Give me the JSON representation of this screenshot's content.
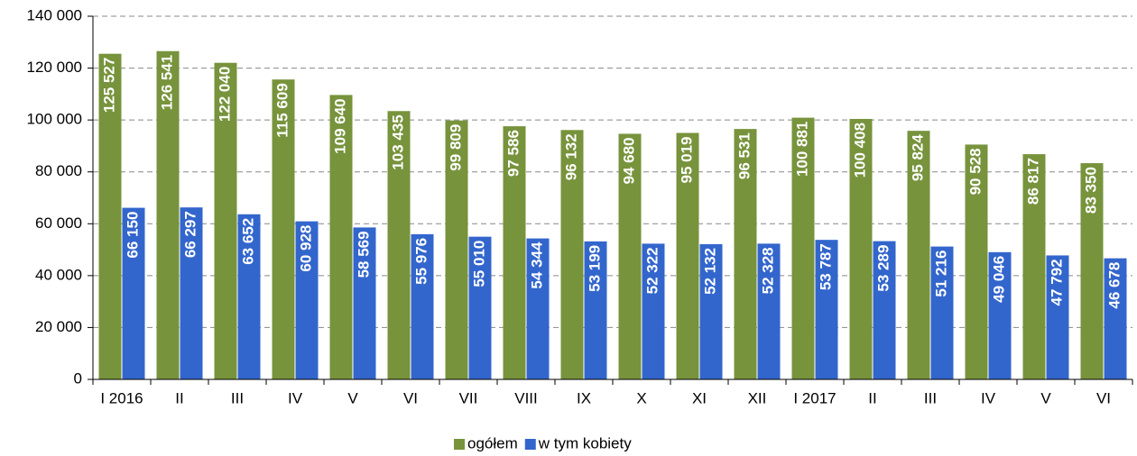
{
  "chart_data": {
    "type": "bar",
    "categories": [
      "I 2016",
      "II",
      "III",
      "IV",
      "V",
      "VI",
      "VII",
      "VIII",
      "IX",
      "X",
      "XI",
      "XII",
      "I 2017",
      "II",
      "III",
      "IV",
      "V",
      "VI"
    ],
    "series": [
      {
        "name": "ogółem",
        "color": "#77933c",
        "values": [
          125527,
          126541,
          122040,
          115609,
          109640,
          103435,
          99809,
          97586,
          96132,
          94680,
          95019,
          96531,
          100881,
          100408,
          95824,
          90528,
          86817,
          83350
        ],
        "value_labels": [
          "125 527",
          "126 541",
          "122 040",
          "115 609",
          "109 640",
          "103 435",
          "99 809",
          "97 586",
          "96 132",
          "94 680",
          "95 019",
          "96 531",
          "100 881",
          "100 408",
          "95 824",
          "90 528",
          "86 817",
          "83 350"
        ]
      },
      {
        "name": "w tym kobiety",
        "color": "#3366cc",
        "values": [
          66150,
          66297,
          63652,
          60928,
          58569,
          55976,
          55010,
          54344,
          53199,
          52322,
          52132,
          52328,
          53787,
          53289,
          51216,
          49046,
          47792,
          46678
        ],
        "value_labels": [
          "66 150",
          "66 297",
          "63 652",
          "60 928",
          "58 569",
          "55 976",
          "55 010",
          "54 344",
          "53 199",
          "52 322",
          "52 132",
          "52 328",
          "53 787",
          "53 289",
          "51 216",
          "49 046",
          "47 792",
          "46 678"
        ]
      }
    ],
    "ylim": [
      0,
      140000
    ],
    "yticks": [
      0,
      {
        "value": 20000,
        "label": "20 000"
      },
      {
        "value": 40000,
        "label": "40 000"
      },
      {
        "value": 60000,
        "label": "60 000"
      },
      {
        "value": 80000,
        "label": "80 000"
      },
      {
        "value": 100000,
        "label": "100 000"
      },
      {
        "value": 120000,
        "label": "120 000"
      },
      {
        "value": 140000,
        "label": "140 000"
      }
    ],
    "grid": true,
    "legend": "bottom"
  }
}
